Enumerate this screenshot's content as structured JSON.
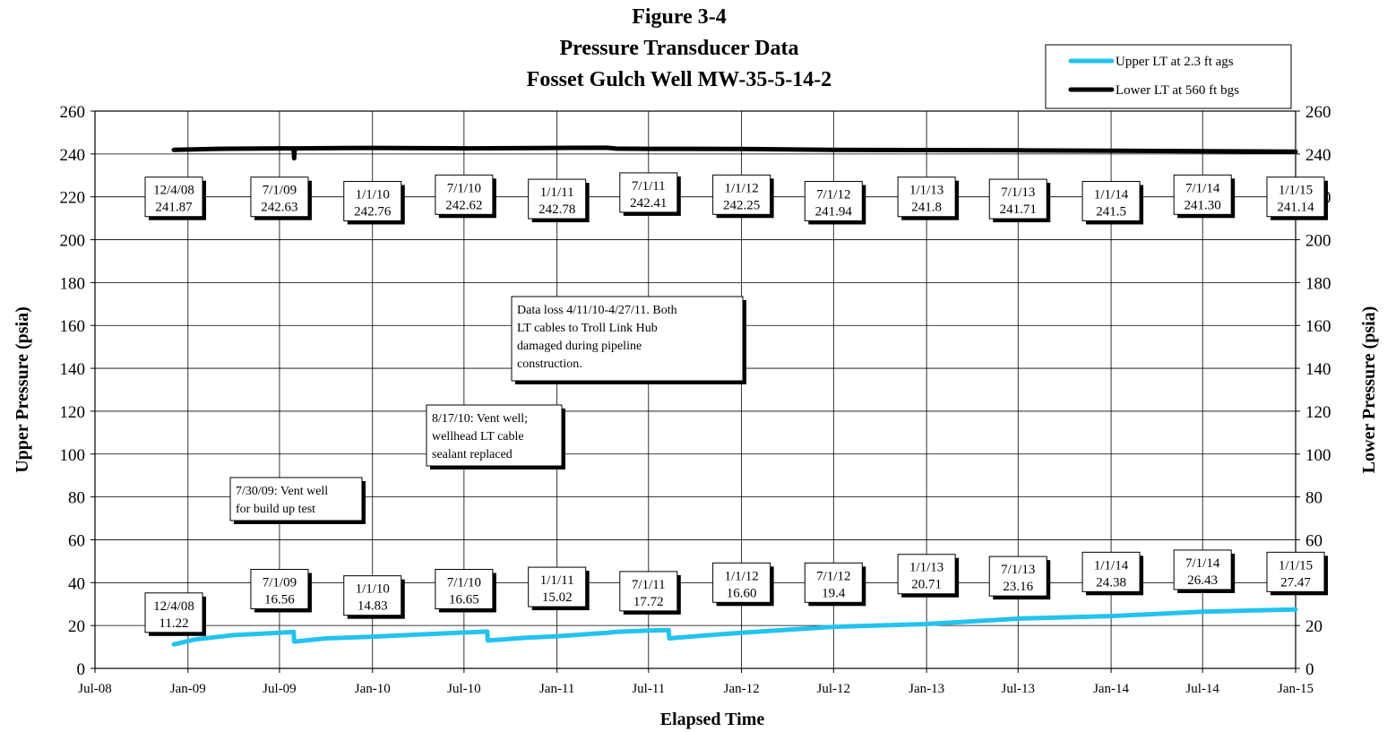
{
  "chart_data": {
    "type": "line",
    "title": [
      "Figure 3-4",
      "Pressure Transducer Data",
      "Fosset Gulch Well MW-35-5-14-2"
    ],
    "xlabel": "Elapsed Time",
    "ylabel": "Upper Pressure (psia)",
    "y2label": "Lower Pressure (psia)",
    "xlim": [
      "2008-07-01",
      "2015-01-01"
    ],
    "ylim": [
      0,
      260
    ],
    "y2lim": [
      0,
      260
    ],
    "x_ticks": [
      {
        "date": "2008-07-01",
        "label": "Jul-08"
      },
      {
        "date": "2009-01-01",
        "label": "Jan-09"
      },
      {
        "date": "2009-07-01",
        "label": "Jul-09"
      },
      {
        "date": "2010-01-01",
        "label": "Jan-10"
      },
      {
        "date": "2010-07-01",
        "label": "Jul-10"
      },
      {
        "date": "2011-01-01",
        "label": "Jan-11"
      },
      {
        "date": "2011-07-01",
        "label": "Jul-11"
      },
      {
        "date": "2012-01-01",
        "label": "Jan-12"
      },
      {
        "date": "2012-07-01",
        "label": "Jul-12"
      },
      {
        "date": "2013-01-01",
        "label": "Jan-13"
      },
      {
        "date": "2013-07-01",
        "label": "Jul-13"
      },
      {
        "date": "2014-01-01",
        "label": "Jan-14"
      },
      {
        "date": "2014-07-01",
        "label": "Jul-14"
      },
      {
        "date": "2015-01-01",
        "label": "Jan-15"
      }
    ],
    "y_ticks": [
      0,
      20,
      40,
      60,
      80,
      100,
      120,
      140,
      160,
      180,
      200,
      220,
      240,
      260
    ],
    "grid": true,
    "legend_position": "top-right",
    "series": [
      {
        "name": "Upper LT at 2.3 ft ags",
        "color": "#22c3ef",
        "axis": "left",
        "points": [
          {
            "x": "2008-12-04",
            "y": 11.2
          },
          {
            "x": "2009-01-15",
            "y": 13.5
          },
          {
            "x": "2009-04-01",
            "y": 15.5
          },
          {
            "x": "2009-07-01",
            "y": 16.6
          },
          {
            "x": "2009-07-29",
            "y": 17.0
          },
          {
            "x": "2009-07-30",
            "y": 12.5
          },
          {
            "x": "2009-10-01",
            "y": 14.0
          },
          {
            "x": "2010-01-01",
            "y": 14.8
          },
          {
            "x": "2010-04-01",
            "y": 15.8
          },
          {
            "x": "2010-07-01",
            "y": 16.7
          },
          {
            "x": "2010-08-16",
            "y": 17.2
          },
          {
            "x": "2010-08-17",
            "y": 13.0
          },
          {
            "x": "2010-11-01",
            "y": 14.3
          },
          {
            "x": "2011-01-01",
            "y": 15.0
          },
          {
            "x": "2011-04-10",
            "y": 16.6
          },
          {
            "x": "2011-04-28",
            "y": 17.0
          },
          {
            "x": "2011-07-01",
            "y": 17.7
          },
          {
            "x": "2011-08-10",
            "y": 17.9
          },
          {
            "x": "2011-08-11",
            "y": 14.0
          },
          {
            "x": "2011-11-01",
            "y": 15.6
          },
          {
            "x": "2012-01-01",
            "y": 16.6
          },
          {
            "x": "2012-04-01",
            "y": 18.0
          },
          {
            "x": "2012-07-01",
            "y": 19.4
          },
          {
            "x": "2013-01-01",
            "y": 20.7
          },
          {
            "x": "2013-07-01",
            "y": 23.2
          },
          {
            "x": "2014-01-01",
            "y": 24.4
          },
          {
            "x": "2014-07-01",
            "y": 26.4
          },
          {
            "x": "2015-01-01",
            "y": 27.5
          }
        ]
      },
      {
        "name": "Lower LT at 560 ft bgs",
        "color": "#000000",
        "axis": "right",
        "points": [
          {
            "x": "2008-12-04",
            "y": 241.9
          },
          {
            "x": "2009-03-01",
            "y": 242.4
          },
          {
            "x": "2009-07-01",
            "y": 242.6
          },
          {
            "x": "2009-07-29",
            "y": 242.6
          },
          {
            "x": "2009-07-30",
            "y": 238.0
          },
          {
            "x": "2009-07-31",
            "y": 242.6
          },
          {
            "x": "2010-01-01",
            "y": 242.8
          },
          {
            "x": "2010-04-10",
            "y": 242.7
          },
          {
            "x": "2010-07-01",
            "y": 242.6
          },
          {
            "x": "2011-01-01",
            "y": 242.8
          },
          {
            "x": "2011-04-10",
            "y": 242.9
          },
          {
            "x": "2011-04-28",
            "y": 242.5
          },
          {
            "x": "2011-07-01",
            "y": 242.4
          },
          {
            "x": "2012-01-01",
            "y": 242.3
          },
          {
            "x": "2012-07-01",
            "y": 241.9
          },
          {
            "x": "2013-01-01",
            "y": 241.8
          },
          {
            "x": "2013-07-01",
            "y": 241.7
          },
          {
            "x": "2014-01-01",
            "y": 241.5
          },
          {
            "x": "2014-07-01",
            "y": 241.3
          },
          {
            "x": "2015-01-01",
            "y": 241.1
          }
        ]
      }
    ],
    "upper_labels": [
      {
        "x": "2008-12-04",
        "y_center": 220,
        "date": "12/4/08",
        "value": "241.87"
      },
      {
        "x": "2009-07-01",
        "y_center": 220,
        "date": "7/1/09",
        "value": "242.63"
      },
      {
        "x": "2010-01-01",
        "y_center": 218,
        "date": "1/1/10",
        "value": "242.76"
      },
      {
        "x": "2010-07-01",
        "y_center": 221,
        "date": "7/1/10",
        "value": "242.62"
      },
      {
        "x": "2011-01-01",
        "y_center": 219,
        "date": "1/1/11",
        "value": "242.78"
      },
      {
        "x": "2011-07-01",
        "y_center": 222,
        "date": "7/1/11",
        "value": "242.41"
      },
      {
        "x": "2012-01-01",
        "y_center": 221,
        "date": "1/1/12",
        "value": "242.25"
      },
      {
        "x": "2012-07-01",
        "y_center": 218,
        "date": "7/1/12",
        "value": "241.94"
      },
      {
        "x": "2013-01-01",
        "y_center": 220,
        "date": "1/1/13",
        "value": "241.8"
      },
      {
        "x": "2013-07-01",
        "y_center": 219,
        "date": "7/1/13",
        "value": "241.71"
      },
      {
        "x": "2014-01-01",
        "y_center": 218,
        "date": "1/1/14",
        "value": "241.5"
      },
      {
        "x": "2014-07-01",
        "y_center": 221,
        "date": "7/1/14",
        "value": "241.30"
      },
      {
        "x": "2015-01-01",
        "y_center": 220,
        "date": "1/1/15",
        "value": "241.14"
      }
    ],
    "lower_labels": [
      {
        "x": "2008-12-04",
        "y_center": 26,
        "date": "12/4/08",
        "value": "11.22"
      },
      {
        "x": "2009-07-01",
        "y_center": 37,
        "date": "7/1/09",
        "value": "16.56"
      },
      {
        "x": "2010-01-01",
        "y_center": 34,
        "date": "1/1/10",
        "value": "14.83"
      },
      {
        "x": "2010-07-01",
        "y_center": 37,
        "date": "7/1/10",
        "value": "16.65"
      },
      {
        "x": "2011-01-01",
        "y_center": 38,
        "date": "1/1/11",
        "value": "15.02"
      },
      {
        "x": "2011-07-01",
        "y_center": 36,
        "date": "7/1/11",
        "value": "17.72"
      },
      {
        "x": "2012-01-01",
        "y_center": 40,
        "date": "1/1/12",
        "value": "16.60"
      },
      {
        "x": "2012-07-01",
        "y_center": 40,
        "date": "7/1/12",
        "value": "19.4"
      },
      {
        "x": "2013-01-01",
        "y_center": 44,
        "date": "1/1/13",
        "value": "20.71"
      },
      {
        "x": "2013-07-01",
        "y_center": 43,
        "date": "7/1/13",
        "value": "23.16"
      },
      {
        "x": "2014-01-01",
        "y_center": 45,
        "date": "1/1/14",
        "value": "24.38"
      },
      {
        "x": "2014-07-01",
        "y_center": 46,
        "date": "7/1/14",
        "value": "26.43"
      },
      {
        "x": "2015-01-01",
        "y_center": 45,
        "date": "1/1/15",
        "value": "27.47"
      }
    ],
    "annotations": [
      {
        "lines": [
          "Data loss 4/11/10-4/27/11.  Both",
          "LT cables to Troll Link Hub",
          "damaged during pipeline",
          "construction."
        ]
      },
      {
        "lines": [
          "8/17/10: Vent well;",
          "wellhead LT cable",
          "sealant replaced"
        ]
      },
      {
        "lines": [
          "7/30/09: Vent well",
          "for build up test"
        ]
      }
    ]
  }
}
